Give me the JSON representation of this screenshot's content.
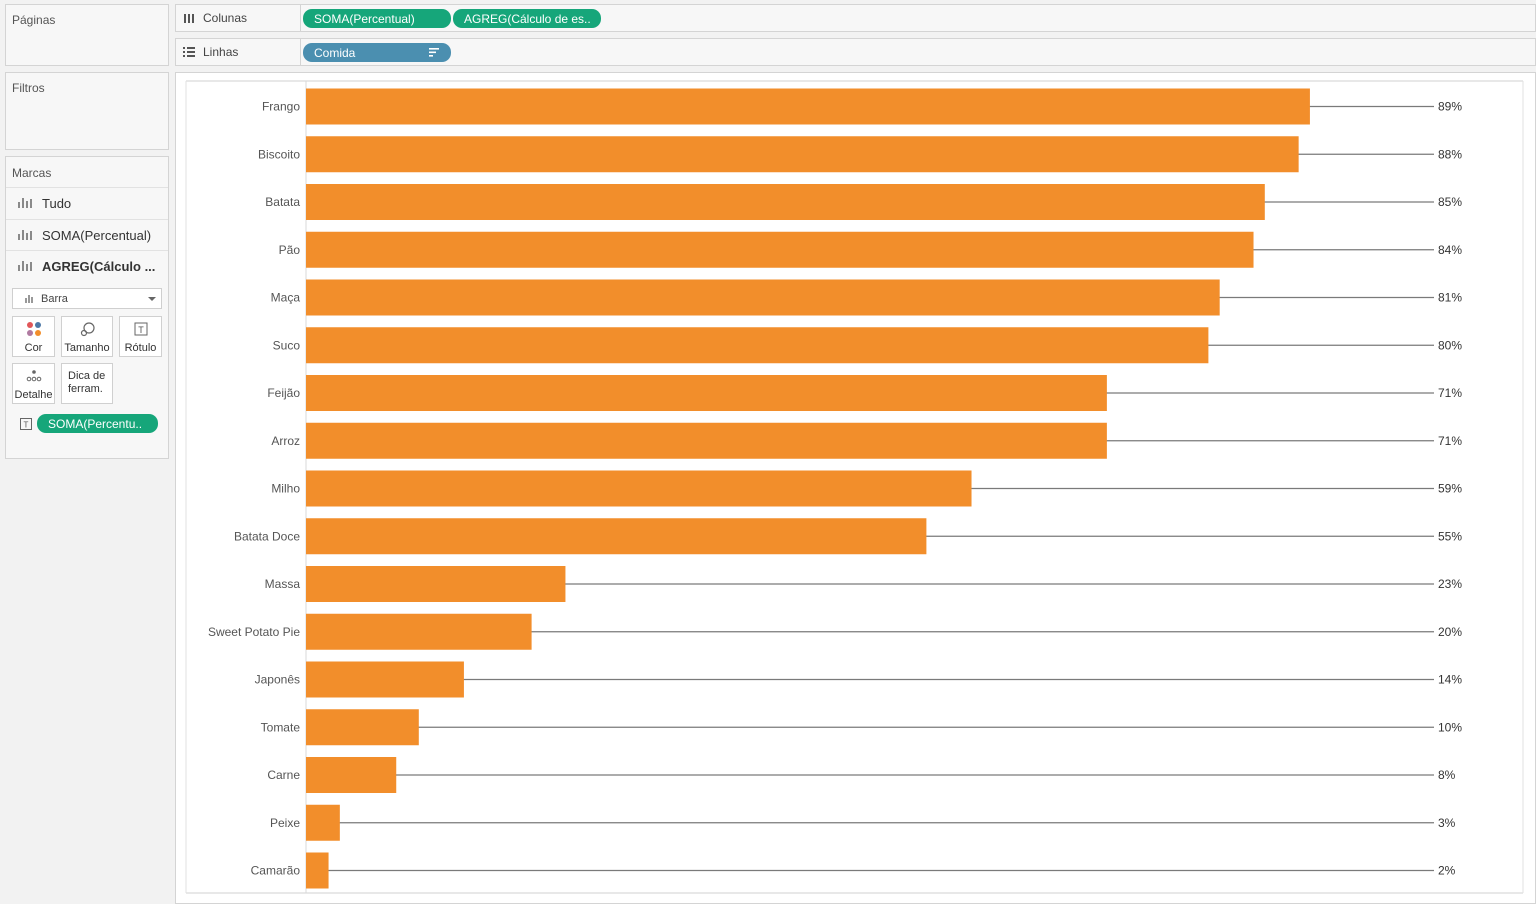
{
  "pages_panel": {
    "title": "Páginas"
  },
  "filters_panel": {
    "title": "Filtros"
  },
  "marks_panel": {
    "title": "Marcas",
    "items": [
      {
        "label": "Tudo",
        "bold": false
      },
      {
        "label": "SOMA(Percentual)",
        "bold": false
      },
      {
        "label": "AGREG(Cálculo ...",
        "bold": true
      }
    ],
    "mark_type": "Barra",
    "cards": {
      "color": "Cor",
      "size": "Tamanho",
      "label": "Rótulo",
      "detail": "Detalhe",
      "tooltip_line1": "Dica de",
      "tooltip_line2": "ferram."
    },
    "label_pill": "SOMA(Percentu.."
  },
  "shelves": {
    "columns": {
      "label": "Colunas",
      "pills": [
        "SOMA(Percentual)",
        "AGREG(Cálculo de es.."
      ]
    },
    "rows": {
      "label": "Linhas",
      "pills": [
        "Comida"
      ]
    }
  },
  "colors": {
    "bar": "#f28e2b",
    "line": "#7a7a7a",
    "pill_green": "#16a67a",
    "pill_blue": "#4b8fb0"
  },
  "chart_data": {
    "type": "bar",
    "categories": [
      "Frango",
      "Biscoito",
      "Batata",
      "Pão",
      "Maça",
      "Suco",
      "Feijão",
      "Arroz",
      "Milho",
      "Batata Doce",
      "Massa",
      "Sweet Potato Pie",
      "Japonês",
      "Tomate",
      "Carne",
      "Peixe",
      "Camarão"
    ],
    "values": [
      89,
      88,
      85,
      84,
      81,
      80,
      71,
      71,
      59,
      55,
      23,
      20,
      14,
      10,
      8,
      3,
      2
    ],
    "value_labels": [
      "89%",
      "88%",
      "85%",
      "84%",
      "81%",
      "80%",
      "71%",
      "71%",
      "59%",
      "55%",
      "23%",
      "20%",
      "14%",
      "10%",
      "8%",
      "3%",
      "2%"
    ],
    "xlim": [
      0,
      100
    ],
    "orientation": "horizontal",
    "lines_to_end": true
  }
}
